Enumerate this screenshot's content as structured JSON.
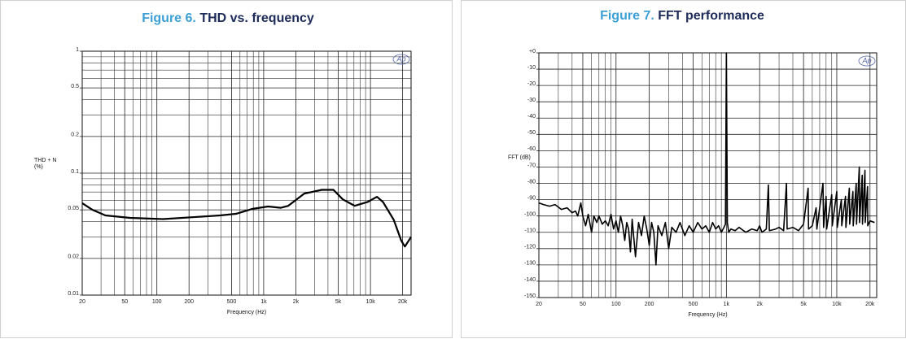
{
  "chart_data": [
    {
      "type": "line",
      "figure_label": "Figure 6.",
      "title": "THD vs. frequency",
      "xlabel": "Frequency (Hz)",
      "ylabel": [
        "THD + N",
        "(%)"
      ],
      "logo": "Ap",
      "xscale": "log",
      "yscale": "log",
      "grid": true,
      "xlim": [
        20,
        24000
      ],
      "ylim": [
        0.01,
        1
      ],
      "xticks": [
        20,
        50,
        100,
        200,
        500,
        {
          "value": 1000,
          "label": "1k"
        },
        {
          "value": 2000,
          "label": "2k"
        },
        {
          "value": 5000,
          "label": "5k"
        },
        {
          "value": 10000,
          "label": "10k"
        },
        {
          "value": 20000,
          "label": "20k"
        }
      ],
      "yticks": [
        0.01,
        0.02,
        0.05,
        0.1,
        0.2,
        0.5,
        1
      ],
      "x": [
        20,
        25,
        33,
        56,
        114,
        230,
        390,
        550,
        790,
        1100,
        1450,
        1700,
        2400,
        3500,
        4500,
        5500,
        7100,
        9400,
        11500,
        13100,
        16500,
        19400,
        21000,
        24000
      ],
      "series": [
        {
          "color": "#000000",
          "values": [
            0.0567,
            0.05,
            0.045,
            0.043,
            0.042,
            0.0437,
            0.045,
            0.0464,
            0.051,
            0.0533,
            0.052,
            0.054,
            0.068,
            0.073,
            0.073,
            0.061,
            0.054,
            0.058,
            0.064,
            0.058,
            0.0415,
            0.028,
            0.025,
            0.03
          ]
        }
      ]
    },
    {
      "type": "line",
      "figure_label": "Figure 7.",
      "title": "FFT performance",
      "xlabel": "Frequency (Hz)",
      "ylabel": [
        "FFT (dB)"
      ],
      "logo": "Ap",
      "xscale": "log",
      "yscale": "linear",
      "grid": true,
      "xlim": [
        20,
        23000
      ],
      "ylim": [
        -150,
        0
      ],
      "xticks": [
        20,
        50,
        100,
        200,
        500,
        {
          "value": 1000,
          "label": "1k"
        },
        {
          "value": 2000,
          "label": "2k"
        },
        {
          "value": 5000,
          "label": "5k"
        },
        {
          "value": 10000,
          "label": "10k"
        },
        {
          "value": 20000,
          "label": "20k"
        }
      ],
      "yticks": [
        {
          "value": 0,
          "label": "+0"
        },
        -10,
        -20,
        -30,
        -40,
        -50,
        -60,
        -70,
        -80,
        -90,
        -100,
        -110,
        -120,
        -130,
        -140,
        -150
      ],
      "x": [
        20,
        22,
        25,
        28,
        32,
        36,
        40,
        43,
        45,
        48,
        50,
        53,
        56,
        60,
        63,
        67,
        70,
        75,
        80,
        85,
        90,
        95,
        100,
        105,
        110,
        115,
        120,
        125,
        130,
        135,
        140,
        150,
        160,
        170,
        180,
        190,
        200,
        210,
        220,
        230,
        240,
        260,
        280,
        300,
        320,
        350,
        380,
        420,
        460,
        500,
        550,
        600,
        650,
        700,
        750,
        800,
        850,
        900,
        950,
        980,
        1000,
        1020,
        1050,
        1100,
        1200,
        1300,
        1500,
        1700,
        1900,
        2000,
        2100,
        2300,
        2400,
        2450,
        2800,
        3000,
        3300,
        3500,
        3550,
        4000,
        4500,
        5000,
        5500,
        5550,
        6000,
        6500,
        6600,
        7500,
        7600,
        8000,
        8100,
        9000,
        9100,
        10000,
        10100,
        11000,
        11100,
        12000,
        12100,
        13000,
        13100,
        14000,
        14100,
        15000,
        15100,
        16000,
        16100,
        17000,
        17100,
        18000,
        18100,
        19000,
        19100,
        20000,
        22000
      ],
      "series": [
        {
          "color": "#000000",
          "values": [
            -92,
            -93,
            -94,
            -93,
            -96,
            -95,
            -98,
            -97,
            -100,
            -92,
            -100,
            -106,
            -99,
            -110,
            -100,
            -104,
            -100,
            -105,
            -103,
            -106,
            -99,
            -108,
            -103,
            -110,
            -100,
            -106,
            -115,
            -104,
            -108,
            -122,
            -102,
            -125,
            -104,
            -112,
            -100,
            -108,
            -118,
            -104,
            -110,
            -130,
            -106,
            -112,
            -104,
            -120,
            -107,
            -110,
            -104,
            -112,
            -106,
            -110,
            -104,
            -108,
            -106,
            -110,
            -104,
            -108,
            -106,
            -110,
            -107,
            -105,
            0,
            -104,
            -110,
            -108,
            -109,
            -107,
            -110,
            -108,
            -109,
            -106,
            -110,
            -108,
            -81,
            -109,
            -108,
            -107,
            -109,
            -80,
            -108,
            -107,
            -109,
            -105,
            -83,
            -108,
            -106,
            -95,
            -108,
            -80,
            -107,
            -88,
            -108,
            -87,
            -106,
            -85,
            -107,
            -90,
            -106,
            -88,
            -107,
            -83,
            -105,
            -85,
            -106,
            -80,
            -105,
            -70,
            -104,
            -75,
            -105,
            -72,
            -104,
            -82,
            -106,
            -103,
            -104
          ]
        }
      ]
    }
  ]
}
